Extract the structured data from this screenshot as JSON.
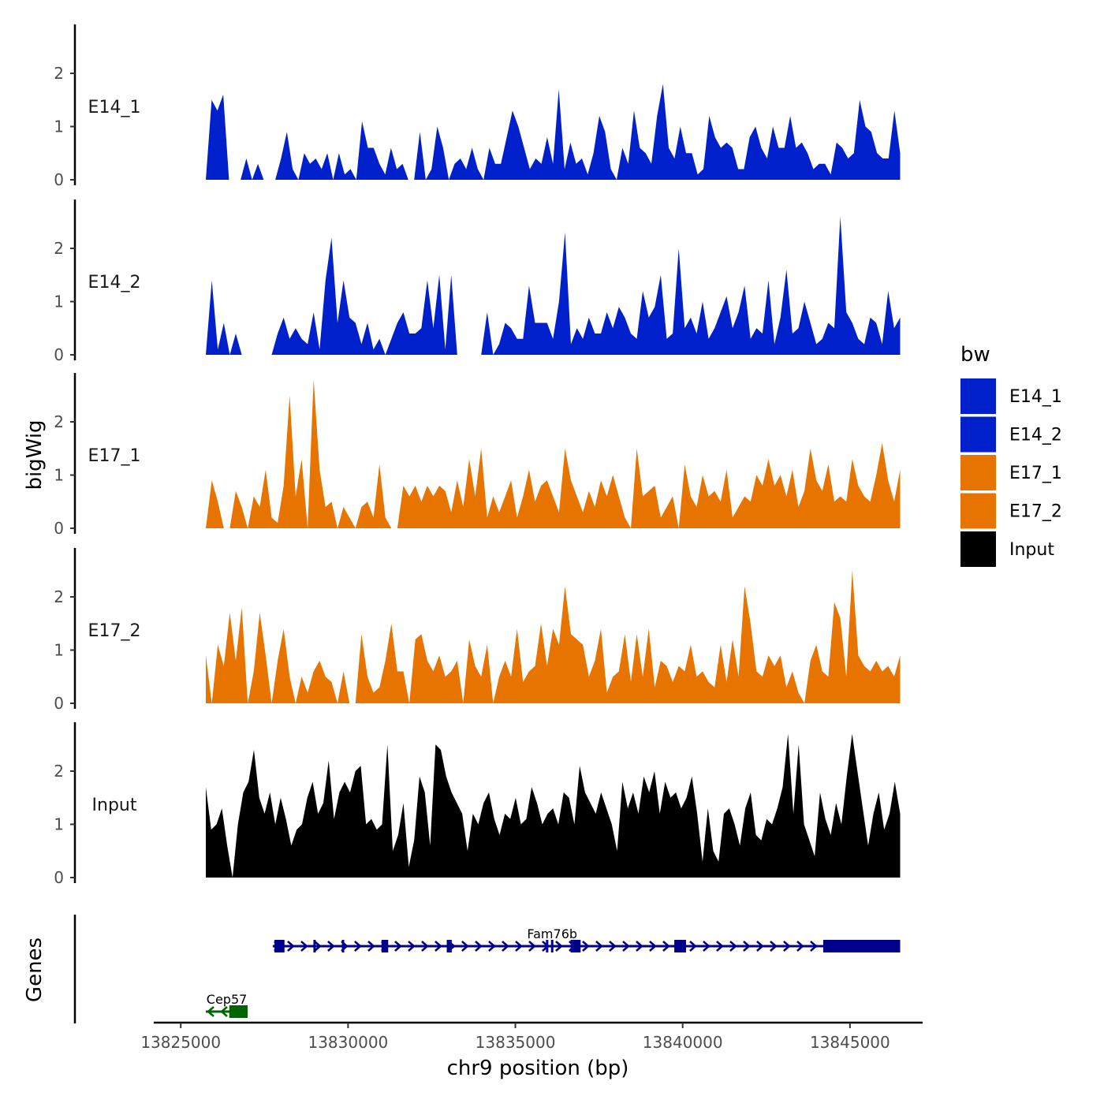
{
  "chart_data": {
    "type": "area",
    "title": "",
    "xlabel": "chr9 position (bp)",
    "ylabel": "bigWig",
    "gene_panel_label": "Genes",
    "xlim": [
      13824500,
      13846700
    ],
    "x_ticks": [
      13825000,
      13830000,
      13835000,
      13840000,
      13845000
    ],
    "x_tick_labels": [
      "13825000",
      "13830000",
      "13835000",
      "13840000",
      "13845000"
    ],
    "ylim": [
      0,
      2.9
    ],
    "y_ticks": [
      0,
      1,
      2
    ],
    "y_tick_labels": [
      "0",
      "1",
      "2"
    ],
    "data_range": [
      13825750,
      13846500
    ],
    "legend": {
      "title": "bw",
      "position": "right",
      "entries": [
        {
          "label": "E14_1",
          "color": "#0020cc"
        },
        {
          "label": "E14_2",
          "color": "#0020cc"
        },
        {
          "label": "E17_1",
          "color": "#e87400"
        },
        {
          "label": "E17_2",
          "color": "#e87400"
        },
        {
          "label": "Input",
          "color": "#000000"
        }
      ]
    },
    "series": [
      {
        "name": "E14_1",
        "color": "#0020cc",
        "values": [
          0,
          1.5,
          1.3,
          1.6,
          0,
          0,
          0,
          0.4,
          0,
          0.3,
          0,
          0,
          0,
          0.4,
          0.9,
          0.2,
          0,
          0.5,
          0.3,
          0.4,
          0.2,
          0.5,
          0,
          0.5,
          0.1,
          0.2,
          0,
          1.1,
          0.6,
          0.6,
          0.3,
          0.1,
          0.6,
          0.2,
          0.3,
          0,
          0,
          0.9,
          0,
          0.2,
          1,
          0.6,
          0,
          0.3,
          0.4,
          0.2,
          0.6,
          0.2,
          0,
          0.6,
          0.3,
          0.3,
          0.8,
          1.3,
          1,
          0.6,
          0.2,
          0.4,
          0.3,
          0.8,
          0.3,
          1.7,
          0.2,
          0.7,
          0.3,
          0.4,
          0.1,
          0.5,
          1.2,
          0.9,
          0.2,
          0,
          0.6,
          0.3,
          1.3,
          0.6,
          0.5,
          0.3,
          1.2,
          1.8,
          0.6,
          0.4,
          1.0,
          0.5,
          0.5,
          0.1,
          0.2,
          1.2,
          0.8,
          0.6,
          0.7,
          0.6,
          0.2,
          0.2,
          0.8,
          1.0,
          0.6,
          0.4,
          1.0,
          0.6,
          0.6,
          1.2,
          0.6,
          0.7,
          0.5,
          0.2,
          0.3,
          0.3,
          0.1,
          0.7,
          0.6,
          0.4,
          0.5,
          1.5,
          1.0,
          0.9,
          0.5,
          0.4,
          0.4,
          1.3,
          0.5
        ]
      },
      {
        "name": "E14_2",
        "color": "#0020cc",
        "values": [
          0,
          1.4,
          0.1,
          0.6,
          0,
          0.4,
          0,
          0,
          0,
          0,
          0,
          0,
          0.4,
          0.7,
          0.3,
          0.5,
          0.3,
          0.2,
          0.8,
          0.1,
          1.4,
          2.2,
          0.6,
          1.4,
          0.7,
          0.6,
          0.2,
          0.6,
          0.1,
          0.3,
          0,
          0.3,
          0.6,
          0.8,
          0.4,
          0.4,
          0.5,
          1.4,
          0.5,
          1.5,
          0.1,
          1.5,
          0,
          0,
          0,
          0,
          0,
          0.8,
          0,
          0.2,
          0.6,
          0.5,
          0.3,
          0.3,
          1.3,
          0.6,
          0.6,
          0.6,
          0.3,
          1.0,
          2.3,
          0.2,
          0.5,
          0.3,
          0.7,
          0.4,
          0.4,
          0.8,
          0.5,
          0.9,
          0.7,
          0.4,
          0.3,
          1.2,
          0.7,
          0.9,
          1.5,
          0.3,
          0.4,
          2.0,
          0.5,
          0.7,
          0.4,
          1.0,
          0.3,
          0.5,
          0.8,
          1.1,
          0.5,
          0.8,
          1.3,
          0.3,
          0.5,
          0.4,
          1.4,
          0.2,
          0.7,
          1.6,
          0.4,
          0.5,
          1.0,
          0.6,
          0.2,
          0.3,
          0.6,
          0.5,
          2.6,
          0.8,
          0.6,
          0.3,
          0.2,
          0.7,
          0.6,
          0.2,
          1.2,
          0.5,
          0.7
        ]
      },
      {
        "name": "E17_1",
        "color": "#e87400",
        "values": [
          0,
          0.9,
          0.5,
          0,
          0,
          0.7,
          0.4,
          0,
          0.6,
          0.4,
          1.1,
          0.2,
          0.1,
          0.8,
          2.5,
          0.6,
          1.3,
          0,
          2.8,
          1.1,
          0.4,
          0.5,
          0,
          0.4,
          0.2,
          0,
          0.4,
          0.5,
          0.2,
          1.2,
          0.2,
          0,
          0,
          0.8,
          0.6,
          0.8,
          0.5,
          0.8,
          0.6,
          0.8,
          0.7,
          0.3,
          0.9,
          0.4,
          1.3,
          0.6,
          1.5,
          0.2,
          0.6,
          0.3,
          0.6,
          0.9,
          0.2,
          0.6,
          1.1,
          0.5,
          0.8,
          0.9,
          0.6,
          0.3,
          1.5,
          0.9,
          0.6,
          0.3,
          0.7,
          0.4,
          0.9,
          0.6,
          1.0,
          0.6,
          0.2,
          0,
          1.5,
          0.6,
          0.7,
          0.8,
          0.2,
          0.4,
          0.6,
          0,
          1.2,
          0.6,
          0.4,
          1.0,
          0.6,
          0.7,
          0.5,
          1.1,
          0.2,
          0.4,
          0.6,
          0.5,
          1.0,
          0.8,
          1.3,
          0.8,
          1.0,
          0.6,
          1.1,
          0.4,
          0.7,
          1.5,
          0.9,
          0.7,
          1.2,
          0.5,
          0.6,
          0.5,
          1.3,
          0.8,
          0.6,
          0.5,
          1.0,
          1.6,
          0.9,
          0.5,
          1.1
        ]
      },
      {
        "name": "E17_2",
        "color": "#e87400",
        "values": [
          0.9,
          0,
          1.1,
          0.7,
          1.7,
          0.8,
          1.8,
          0,
          0.6,
          1.7,
          0.9,
          0,
          0.8,
          1.4,
          0.5,
          0,
          0.5,
          0.2,
          0.6,
          0.8,
          0.5,
          0.4,
          0,
          0.6,
          0,
          0,
          1.3,
          0.5,
          0.2,
          0.3,
          0.8,
          1.5,
          0.6,
          0.6,
          0,
          1.2,
          1.3,
          0.8,
          0.6,
          0.9,
          0.5,
          0.6,
          0.8,
          0,
          1.2,
          0.7,
          0.5,
          1.1,
          0,
          0.5,
          0.8,
          0.5,
          1.4,
          0.4,
          0.6,
          0.7,
          1.5,
          0.7,
          1.4,
          1.1,
          2.2,
          1.3,
          1.2,
          1.1,
          0.5,
          0.8,
          1.4,
          0.2,
          0.5,
          0.6,
          1.3,
          0.4,
          1.3,
          0.5,
          1.4,
          0.3,
          0.8,
          0.7,
          0.4,
          0.7,
          0.6,
          1.1,
          0.5,
          0.6,
          0.4,
          0.3,
          1.1,
          0.4,
          1.2,
          0.5,
          2.2,
          1.5,
          0.6,
          0.5,
          0.9,
          0.7,
          0.9,
          0.3,
          0.6,
          0.2,
          0,
          0.8,
          1.1,
          0.6,
          0.5,
          1.9,
          1.6,
          0.5,
          2.5,
          0.9,
          0.7,
          0.6,
          0.8,
          0.6,
          0.7,
          0.5,
          0.9
        ]
      },
      {
        "name": "Input",
        "color": "#000000",
        "values": [
          1.7,
          0.9,
          1.0,
          1.3,
          0.6,
          0,
          1.0,
          1.6,
          1.8,
          2.4,
          1.5,
          1.2,
          1.6,
          1.0,
          1.5,
          1.1,
          0.6,
          0.9,
          1.0,
          1.5,
          1.8,
          1.2,
          1.4,
          2.2,
          1.1,
          1.6,
          1.8,
          1.6,
          2.0,
          2.1,
          1.0,
          1.1,
          0.9,
          1.0,
          2.5,
          0.5,
          0.8,
          1.4,
          0.2,
          0.7,
          1.9,
          1.6,
          0.6,
          2.5,
          2.4,
          1.9,
          1.6,
          1.4,
          1.2,
          0.5,
          1.2,
          1.0,
          1.4,
          1.6,
          1.1,
          0.8,
          1.2,
          1.1,
          1.5,
          1.0,
          1.1,
          1.7,
          1.4,
          1.0,
          1.2,
          1.3,
          1.0,
          1.6,
          1.5,
          1.0,
          2.1,
          1.6,
          1.4,
          1.2,
          1.6,
          1.3,
          1.0,
          0.5,
          1.8,
          1.3,
          1.6,
          1.2,
          1.9,
          1.6,
          2.0,
          1.2,
          1.8,
          1.5,
          1.6,
          1.3,
          1.5,
          1.9,
          1.2,
          0.3,
          1.3,
          0.5,
          0.3,
          1.2,
          1.3,
          1.0,
          0.6,
          1.3,
          1.6,
          0.8,
          0.7,
          1.1,
          1.0,
          1.3,
          1.7,
          2.7,
          1.2,
          2.5,
          1.0,
          0.7,
          0.4,
          1.6,
          1.1,
          0.8,
          1.4,
          1.0,
          1.9,
          2.7,
          2.0,
          1.3,
          0.6,
          1.2,
          1.6,
          0.9,
          1.2,
          1.8,
          1.2
        ]
      }
    ],
    "genes": [
      {
        "name": "Fam76b",
        "strand": "+",
        "start": 13827750,
        "end": 13846500,
        "color": "#00008b",
        "exons": [
          [
            13827800,
            13828100
          ],
          [
            13831000,
            13831200
          ],
          [
            13832950,
            13833100
          ],
          [
            13836650,
            13836950
          ],
          [
            13839750,
            13840100
          ],
          [
            13844200,
            13846500
          ]
        ],
        "minor_marks": [
          13829000,
          13829850,
          13835950,
          13836100
        ]
      },
      {
        "name": "Cep57",
        "strand": "-",
        "start": 13825750,
        "end": 13827000,
        "color": "#006400",
        "exons": [
          [
            13826450,
            13827000
          ]
        ],
        "minor_marks": []
      }
    ]
  }
}
